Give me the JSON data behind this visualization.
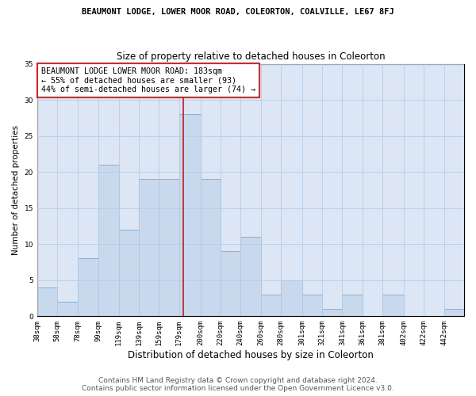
{
  "title": "BEAUMONT LODGE, LOWER MOOR ROAD, COLEORTON, COALVILLE, LE67 8FJ",
  "subtitle": "Size of property relative to detached houses in Coleorton",
  "xlabel": "Distribution of detached houses by size in Coleorton",
  "ylabel": "Number of detached properties",
  "bar_labels": [
    "38sqm",
    "58sqm",
    "78sqm",
    "99sqm",
    "119sqm",
    "139sqm",
    "159sqm",
    "179sqm",
    "200sqm",
    "220sqm",
    "240sqm",
    "260sqm",
    "280sqm",
    "301sqm",
    "321sqm",
    "341sqm",
    "361sqm",
    "381sqm",
    "402sqm",
    "422sqm",
    "442sqm"
  ],
  "bar_heights": [
    4,
    2,
    8,
    21,
    12,
    19,
    19,
    28,
    19,
    9,
    11,
    3,
    5,
    3,
    1,
    3,
    0,
    3,
    0,
    0,
    1
  ],
  "bar_edges": [
    38,
    58,
    78,
    99,
    119,
    139,
    159,
    179,
    200,
    220,
    240,
    260,
    280,
    301,
    321,
    341,
    361,
    381,
    402,
    422,
    442,
    462
  ],
  "bar_color": "#c8d9ee",
  "bar_edge_color": "#8aafd4",
  "vline_x": 183,
  "vline_color": "red",
  "annotation_text": "BEAUMONT LODGE LOWER MOOR ROAD: 183sqm\n← 55% of detached houses are smaller (93)\n44% of semi-detached houses are larger (74) →",
  "annotation_box_color": "white",
  "annotation_box_edge_color": "red",
  "ylim": [
    0,
    35
  ],
  "yticks": [
    0,
    5,
    10,
    15,
    20,
    25,
    30,
    35
  ],
  "grid_color": "#b8cce4",
  "background_color": "#dce6f5",
  "footer_line1": "Contains HM Land Registry data © Crown copyright and database right 2024.",
  "footer_line2": "Contains public sector information licensed under the Open Government Licence v3.0.",
  "title_fontsize": 7.5,
  "subtitle_fontsize": 8.5,
  "xlabel_fontsize": 8.5,
  "ylabel_fontsize": 7.5,
  "tick_fontsize": 6.5,
  "annotation_fontsize": 7.2,
  "footer_fontsize": 6.5
}
